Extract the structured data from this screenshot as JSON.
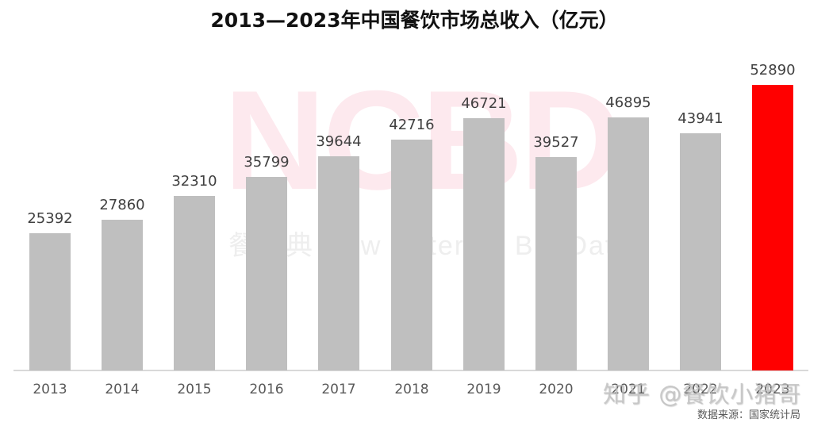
{
  "title": "2013—2023年中国餐饮市场总收入（亿元）",
  "watermark": {
    "logo": "NCBD",
    "subtitle": "餐宝典 New Catering Big Data",
    "zhihu": "知乎 @餐饮小猪哥"
  },
  "source": "数据来源：国家统计局",
  "colors": {
    "bar": "#bfbfbf",
    "highlight": "#ff0000",
    "axis": "#d9d9d9",
    "label": "#404040"
  },
  "chart_data": {
    "type": "bar",
    "title": "2013—2023年中国餐饮市场总收入（亿元）",
    "xlabel": "",
    "ylabel": "",
    "categories": [
      "2013",
      "2014",
      "2015",
      "2016",
      "2017",
      "2018",
      "2019",
      "2020",
      "2021",
      "2022",
      "2023"
    ],
    "values": [
      25392,
      27860,
      32310,
      35799,
      39644,
      42716,
      46721,
      39527,
      46895,
      43941,
      52890
    ],
    "highlight_index": 10,
    "ylim": [
      0,
      52890
    ],
    "grid": false,
    "legend": "none",
    "data_labels": true
  }
}
